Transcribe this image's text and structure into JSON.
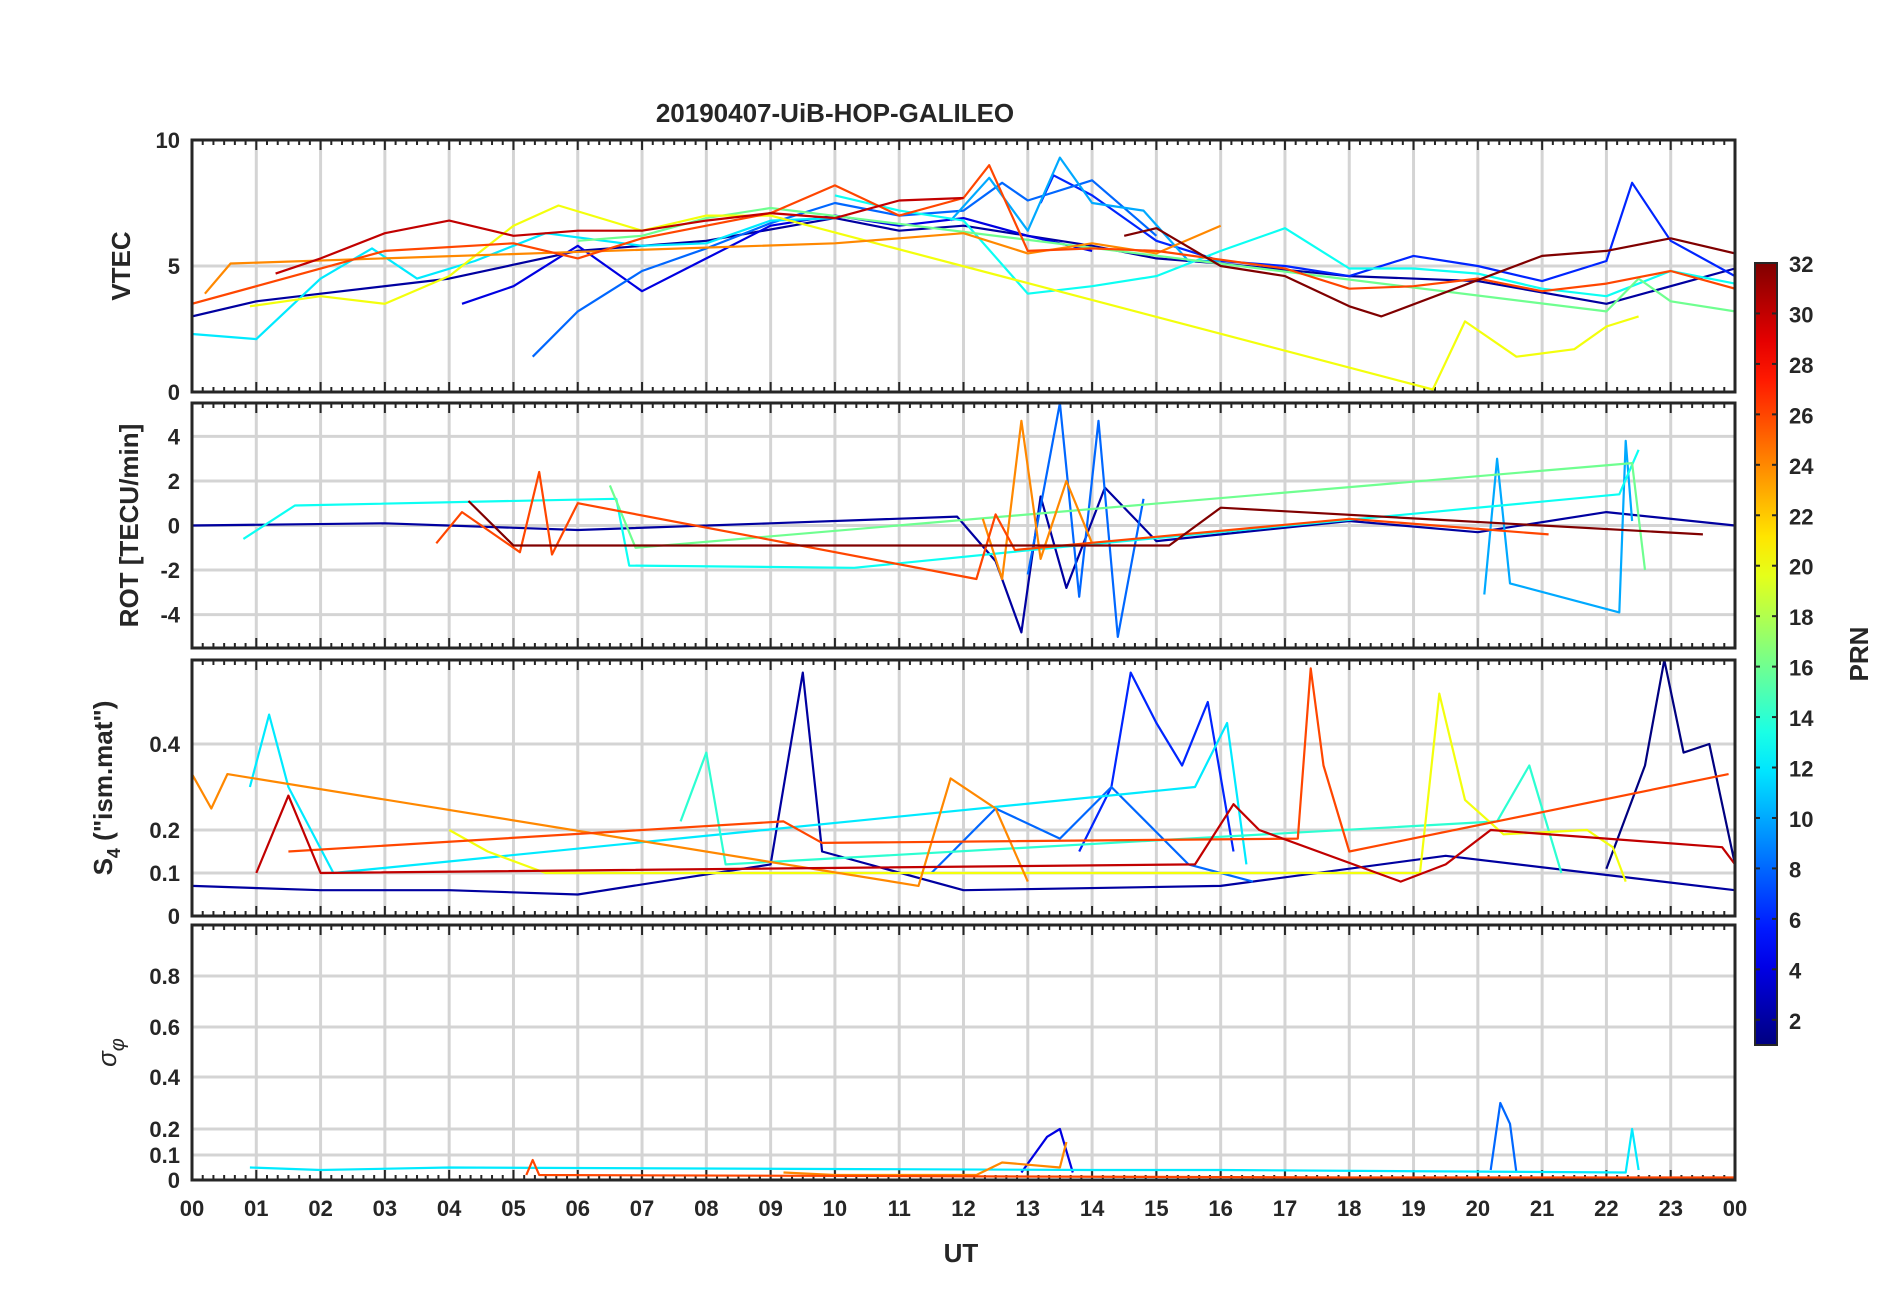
{
  "title": "20190407-UiB-HOP-GALILEO",
  "xlabel": "UT",
  "x_tick_labels": [
    "00",
    "01",
    "02",
    "03",
    "04",
    "05",
    "06",
    "07",
    "08",
    "09",
    "10",
    "11",
    "12",
    "13",
    "14",
    "15",
    "16",
    "17",
    "18",
    "19",
    "20",
    "21",
    "22",
    "23",
    "00"
  ],
  "colorbar": {
    "label": "PRN",
    "range": [
      1,
      32
    ],
    "tick_labels": [
      "2",
      "4",
      "6",
      "8",
      "10",
      "12",
      "14",
      "16",
      "18",
      "20",
      "22",
      "24",
      "26",
      "28",
      "30",
      "32"
    ],
    "colormap": "jet"
  },
  "chart_data": [
    {
      "type": "line",
      "panel": "vtec",
      "ylabel": "VTEC",
      "ylim": [
        0,
        10
      ],
      "xlim": [
        0,
        24
      ],
      "y_tick_labels": [
        "0",
        "5",
        "10"
      ],
      "grid": true,
      "series": [
        {
          "prn": 2,
          "x": [
            0,
            1,
            2,
            4,
            6,
            8,
            10,
            11,
            12,
            13,
            14,
            15,
            16,
            18,
            20,
            22,
            24
          ],
          "y": [
            3.0,
            3.6,
            3.9,
            4.5,
            5.6,
            6.0,
            6.9,
            6.4,
            6.6,
            6.2,
            5.8,
            5.3,
            5.1,
            4.6,
            4.4,
            3.5,
            4.9
          ]
        },
        {
          "prn": 4,
          "x": [
            4.2,
            5,
            6,
            7,
            8,
            9,
            10,
            11,
            12,
            13,
            14
          ],
          "y": [
            3.5,
            4.2,
            5.8,
            4.0,
            5.3,
            6.6,
            7.0,
            6.6,
            6.9,
            6.2,
            5.6
          ]
        },
        {
          "prn": 6,
          "x": [
            13.2,
            13.4,
            14,
            15,
            16,
            17,
            18,
            19,
            20,
            21,
            22,
            22.4,
            23,
            24
          ],
          "y": [
            7.5,
            8.6,
            7.8,
            6.0,
            5.2,
            5.0,
            4.6,
            5.4,
            5.0,
            4.4,
            5.2,
            8.3,
            6.0,
            4.6
          ]
        },
        {
          "prn": 8,
          "x": [
            5.3,
            6,
            7,
            8,
            9,
            10,
            11,
            12,
            12.6,
            13,
            14,
            15
          ],
          "y": [
            1.4,
            3.2,
            4.8,
            5.7,
            6.7,
            7.5,
            7.0,
            7.2,
            8.3,
            7.6,
            8.4,
            6.2
          ]
        },
        {
          "prn": 10,
          "x": [
            11.8,
            12.4,
            13,
            13.5,
            14,
            14.8,
            15.5,
            16
          ],
          "y": [
            6.8,
            8.5,
            6.4,
            9.3,
            7.5,
            7.2,
            5.2,
            5.2
          ]
        },
        {
          "prn": 12,
          "x": [
            0,
            1,
            2,
            2.8,
            3.5,
            4.4,
            5.5,
            7,
            8,
            9,
            10
          ],
          "y": [
            2.3,
            2.1,
            4.5,
            5.7,
            4.5,
            5.2,
            6.3,
            5.8,
            5.9,
            6.8,
            6.9
          ]
        },
        {
          "prn": 13,
          "x": [
            10,
            11,
            12,
            13,
            14,
            15,
            16,
            17,
            18,
            19,
            20,
            21,
            22,
            23,
            24
          ],
          "y": [
            7.8,
            7.2,
            6.8,
            3.9,
            4.2,
            4.6,
            5.6,
            6.5,
            4.9,
            4.9,
            4.7,
            4.1,
            3.8,
            4.8,
            4.3
          ]
        },
        {
          "prn": 16,
          "x": [
            6,
            7,
            8,
            9,
            22,
            22.5,
            23,
            24
          ],
          "y": [
            6.0,
            6.2,
            6.9,
            7.3,
            3.2,
            4.5,
            3.6,
            3.2
          ]
        },
        {
          "prn": 20,
          "x": [
            0.9,
            2,
            3,
            4,
            5,
            5.7,
            7,
            8,
            9,
            19.3,
            19.8,
            20.6,
            21.5,
            22,
            22.5
          ],
          "y": [
            3.4,
            3.8,
            3.5,
            4.6,
            6.6,
            7.4,
            6.4,
            7.0,
            7.0,
            0.1,
            2.8,
            1.4,
            1.7,
            2.6,
            3.0
          ]
        },
        {
          "prn": 24,
          "x": [
            0.2,
            0.6,
            10,
            11,
            12,
            13,
            14,
            15,
            16
          ],
          "y": [
            3.9,
            5.1,
            5.9,
            6.1,
            6.3,
            5.5,
            5.9,
            5.5,
            6.6
          ]
        },
        {
          "prn": 26,
          "x": [
            0,
            1,
            3,
            5,
            6,
            7,
            8,
            9,
            10,
            11,
            12,
            12.4,
            13,
            14,
            15,
            17,
            18,
            19,
            20,
            21,
            22,
            23,
            24
          ],
          "y": [
            3.5,
            4.2,
            5.6,
            5.9,
            5.3,
            6.1,
            6.6,
            7.1,
            8.2,
            7.0,
            7.7,
            9.0,
            5.6,
            5.7,
            5.6,
            4.9,
            4.1,
            4.2,
            4.5,
            4.0,
            4.3,
            4.8,
            4.1
          ]
        },
        {
          "prn": 30,
          "x": [
            1.3,
            2,
            3,
            4,
            5,
            6,
            7,
            8,
            9,
            10,
            11,
            12
          ],
          "y": [
            4.7,
            5.3,
            6.3,
            6.8,
            6.2,
            6.4,
            6.4,
            6.8,
            7.1,
            6.9,
            7.6,
            7.7
          ]
        },
        {
          "prn": 32,
          "x": [
            14.5,
            15,
            16,
            17,
            18,
            18.5,
            21,
            22,
            23,
            24
          ],
          "y": [
            6.2,
            6.5,
            5.0,
            4.6,
            3.4,
            3.0,
            5.4,
            5.6,
            6.1,
            5.5
          ]
        }
      ]
    },
    {
      "type": "line",
      "panel": "rot",
      "ylabel": "ROT [TECU/min]",
      "ylim": [
        -5.5,
        5.5
      ],
      "xlim": [
        0,
        24
      ],
      "y_tick_labels": [
        "-4",
        "-2",
        "0",
        "2",
        "4"
      ],
      "grid": true,
      "series": [
        {
          "prn": 2,
          "x": [
            0,
            3,
            6,
            9,
            11.9,
            12.5,
            12.9,
            13.2,
            13.6,
            14.2,
            15,
            18,
            20,
            22,
            24
          ],
          "y": [
            0.0,
            0.1,
            -0.2,
            0.1,
            0.4,
            -1.6,
            -4.8,
            1.3,
            -2.8,
            1.7,
            -0.7,
            0.2,
            -0.3,
            0.6,
            0.0
          ]
        },
        {
          "prn": 8,
          "x": [
            13.0,
            13.3,
            13.5,
            13.8,
            14.1,
            14.4,
            14.8
          ],
          "y": [
            -2.2,
            2.4,
            5.5,
            -3.2,
            4.7,
            -5.0,
            1.2
          ]
        },
        {
          "prn": 10,
          "x": [
            20.1,
            20.3,
            20.5,
            22.2,
            22.3,
            22.4
          ],
          "y": [
            -3.1,
            3.0,
            -2.6,
            -3.9,
            3.8,
            0.2
          ]
        },
        {
          "prn": 13,
          "x": [
            0.8,
            1.6,
            6.6,
            6.8,
            10.3,
            13.4,
            22.2,
            22.5
          ],
          "y": [
            -0.6,
            0.9,
            1.2,
            -1.8,
            -1.9,
            -1.0,
            1.4,
            3.4
          ]
        },
        {
          "prn": 16,
          "x": [
            6.5,
            6.9,
            22.4,
            22.6
          ],
          "y": [
            1.8,
            -1.0,
            2.8,
            -2.0
          ]
        },
        {
          "prn": 24,
          "x": [
            12.3,
            12.6,
            12.9,
            13.2,
            13.6,
            14.0
          ],
          "y": [
            0.3,
            -2.4,
            4.7,
            -1.5,
            2.0,
            -0.8
          ]
        },
        {
          "prn": 26,
          "x": [
            3.8,
            4.2,
            5.1,
            5.4,
            5.6,
            6.0,
            12.2,
            12.5,
            12.8,
            18.0,
            21.1
          ],
          "y": [
            -0.8,
            0.6,
            -1.2,
            2.4,
            -1.3,
            1.0,
            -2.4,
            0.5,
            -1.1,
            0.3,
            -0.4
          ]
        },
        {
          "prn": 32,
          "x": [
            4.3,
            5.0,
            15.2,
            16.0,
            23.5
          ],
          "y": [
            1.1,
            -0.9,
            -0.9,
            0.8,
            -0.4
          ]
        }
      ]
    },
    {
      "type": "line",
      "panel": "s4",
      "ylabel": "S4 (\"ism.mat\")",
      "ylim": [
        0,
        0.6
      ],
      "xlim": [
        0,
        24
      ],
      "y_tick_labels": [
        "0",
        "0.1",
        "0.2",
        "0.4"
      ],
      "grid": true,
      "series": [
        {
          "prn": 1,
          "x": [
            22,
            22.6,
            22.9,
            23.2,
            23.6,
            24
          ],
          "y": [
            0.11,
            0.35,
            0.6,
            0.38,
            0.4,
            0.12
          ]
        },
        {
          "prn": 2,
          "x": [
            0,
            2,
            4,
            6,
            9.0,
            9.5,
            9.8,
            12,
            16,
            19.5,
            24
          ],
          "y": [
            0.07,
            0.06,
            0.06,
            0.05,
            0.12,
            0.57,
            0.15,
            0.06,
            0.07,
            0.14,
            0.06
          ]
        },
        {
          "prn": 6,
          "x": [
            13.8,
            14.3,
            14.6,
            15.0,
            15.4,
            15.8,
            16.2
          ],
          "y": [
            0.15,
            0.3,
            0.57,
            0.45,
            0.35,
            0.5,
            0.15
          ]
        },
        {
          "prn": 8,
          "x": [
            11.5,
            12.5,
            13.5,
            14.3,
            15.5,
            16.5
          ],
          "y": [
            0.1,
            0.25,
            0.18,
            0.3,
            0.12,
            0.08
          ]
        },
        {
          "prn": 12,
          "x": [
            0.9,
            1.2,
            1.5,
            2.2,
            15.6,
            16.1,
            16.4
          ],
          "y": [
            0.3,
            0.47,
            0.3,
            0.1,
            0.3,
            0.45,
            0.12
          ]
        },
        {
          "prn": 14,
          "x": [
            7.6,
            8.0,
            8.3,
            20.3,
            20.8,
            21.3
          ],
          "y": [
            0.22,
            0.38,
            0.12,
            0.22,
            0.35,
            0.1
          ]
        },
        {
          "prn": 20,
          "x": [
            4.0,
            4.6,
            5.5,
            19.1,
            19.4,
            19.8,
            20.4,
            21.7,
            22.1,
            22.3
          ],
          "y": [
            0.2,
            0.15,
            0.1,
            0.1,
            0.52,
            0.27,
            0.19,
            0.2,
            0.16,
            0.08
          ]
        },
        {
          "prn": 24,
          "x": [
            0.0,
            0.3,
            0.55,
            11.3,
            11.8,
            12.5,
            13.0
          ],
          "y": [
            0.33,
            0.25,
            0.33,
            0.07,
            0.32,
            0.25,
            0.08
          ]
        },
        {
          "prn": 26,
          "x": [
            1.5,
            9.2,
            9.8,
            17.2,
            17.4,
            17.6,
            18.0,
            23.9
          ],
          "y": [
            0.15,
            0.22,
            0.17,
            0.18,
            0.58,
            0.35,
            0.15,
            0.33
          ]
        },
        {
          "prn": 30,
          "x": [
            1.0,
            1.5,
            2.0,
            15.6,
            16.2,
            16.6,
            18.8,
            19.5,
            20.2,
            23.8,
            24
          ],
          "y": [
            0.1,
            0.28,
            0.1,
            0.12,
            0.26,
            0.2,
            0.08,
            0.12,
            0.2,
            0.16,
            0.12
          ]
        }
      ]
    },
    {
      "type": "line",
      "panel": "sigma_phi",
      "ylabel": "σφ",
      "ylim": [
        0,
        1.0
      ],
      "xlim": [
        0,
        24
      ],
      "y_tick_labels": [
        "0",
        "0.1",
        "0.2",
        "0.4",
        "0.6",
        "0.8"
      ],
      "grid": true,
      "series": [
        {
          "prn": 4,
          "x": [
            12.9,
            13.3,
            13.5,
            13.7
          ],
          "y": [
            0.03,
            0.17,
            0.2,
            0.03
          ]
        },
        {
          "prn": 8,
          "x": [
            20.2,
            20.35,
            20.5,
            20.6
          ],
          "y": [
            0.04,
            0.3,
            0.22,
            0.03
          ]
        },
        {
          "prn": 12,
          "x": [
            0.9,
            2.0,
            4.0,
            14.0,
            16.0,
            22.3,
            22.4,
            22.5
          ],
          "y": [
            0.05,
            0.04,
            0.05,
            0.04,
            0.04,
            0.03,
            0.2,
            0.04
          ]
        },
        {
          "prn": 24,
          "x": [
            9.2,
            10.0,
            12.2,
            12.6,
            13.5,
            13.6
          ],
          "y": [
            0.03,
            0.02,
            0.02,
            0.07,
            0.05,
            0.15
          ]
        },
        {
          "prn": 26,
          "x": [
            5.2,
            5.3,
            5.4,
            18.0,
            24.0
          ],
          "y": [
            0.02,
            0.08,
            0.02,
            0.01,
            0.01
          ]
        }
      ]
    }
  ]
}
